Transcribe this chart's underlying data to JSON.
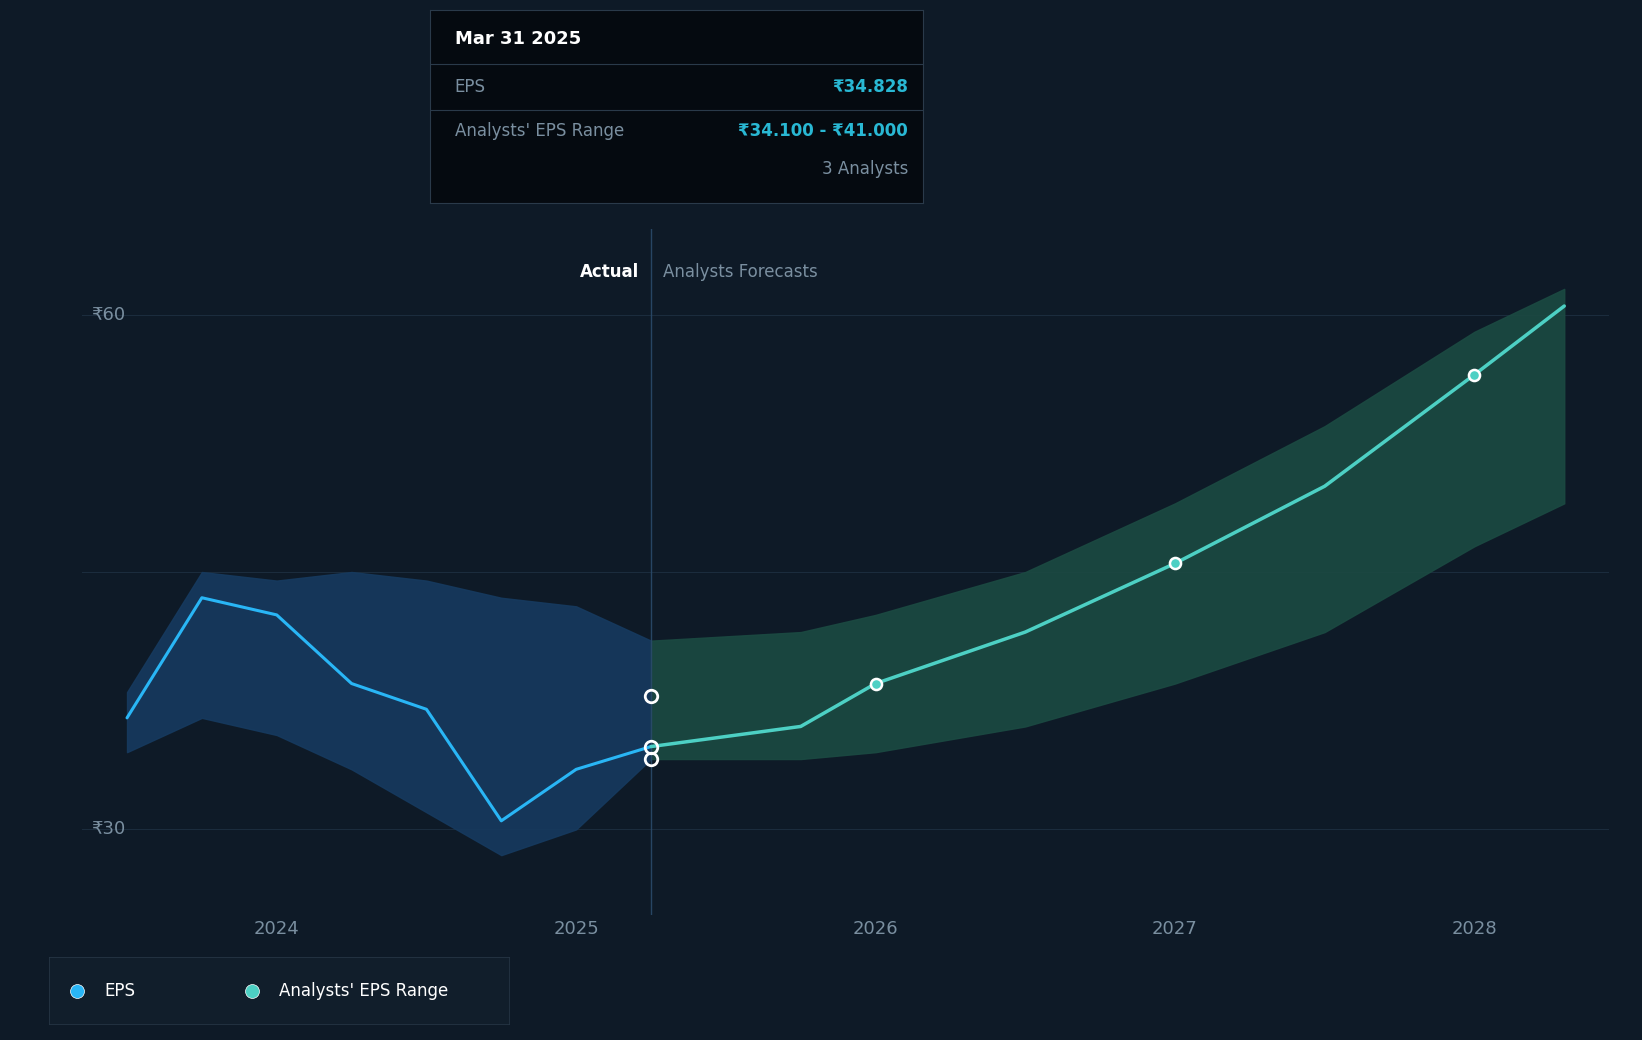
{
  "background_color": "#0e1a27",
  "plot_bg_color": "#0e1a27",
  "ylabel_60": "₹60",
  "ylabel_30": "₹30",
  "x_labels": [
    "2024",
    "2025",
    "2026",
    "2027",
    "2028"
  ],
  "actual_label": "Actual",
  "forecast_label": "Analysts Forecasts",
  "divider_x": 2025.25,
  "eps_actual_x": [
    2023.5,
    2023.75,
    2024.0,
    2024.25,
    2024.5,
    2024.75,
    2025.0,
    2025.25
  ],
  "eps_actual_y": [
    36.5,
    43.5,
    42.5,
    38.5,
    37.0,
    30.5,
    33.5,
    34.828
  ],
  "eps_range_actual_upper_x": [
    2023.5,
    2023.75,
    2024.0,
    2024.25,
    2024.5,
    2024.75,
    2025.0,
    2025.25
  ],
  "eps_range_actual_upper_y": [
    38.0,
    45.0,
    44.5,
    45.0,
    44.5,
    43.5,
    43.0,
    41.0
  ],
  "eps_range_actual_lower_x": [
    2023.5,
    2023.75,
    2024.0,
    2024.25,
    2024.5,
    2024.75,
    2025.0,
    2025.25
  ],
  "eps_range_actual_lower_y": [
    34.5,
    36.5,
    35.5,
    33.5,
    31.0,
    28.5,
    30.0,
    34.1
  ],
  "eps_forecast_x": [
    2025.25,
    2025.75,
    2026.0,
    2026.5,
    2027.0,
    2027.5,
    2028.0,
    2028.3
  ],
  "eps_forecast_y": [
    34.828,
    36.0,
    38.5,
    41.5,
    45.5,
    50.0,
    56.5,
    60.5
  ],
  "eps_forecast_upper_y": [
    41.0,
    41.5,
    42.5,
    45.0,
    49.0,
    53.5,
    59.0,
    61.5
  ],
  "eps_forecast_lower_y": [
    34.1,
    34.1,
    34.5,
    36.0,
    38.5,
    41.5,
    46.5,
    49.0
  ],
  "highlight_eps": 34.828,
  "highlight_upper": 41.0,
  "highlight_lower": 34.1,
  "eps_color": "#29b6f6",
  "forecast_color": "#4dd0c4",
  "forecast_fill_color": "#1b4a42",
  "actual_fill_color": "#163a5f",
  "ylim_min": 25,
  "ylim_max": 65,
  "xlim_min": 2023.35,
  "xlim_max": 2028.45,
  "tooltip_bg": "#050a10",
  "tooltip_border": "#2a3a4a",
  "tooltip_title": "Mar 31 2025",
  "tooltip_eps_label": "EPS",
  "tooltip_eps_value": "₹34.828",
  "tooltip_range_label": "Analysts' EPS Range",
  "tooltip_range_value": "₹34.100 - ₹41.000",
  "tooltip_analysts": "3 Analysts",
  "grid_color": "#1c2d3e",
  "divider_line_color": "#2a4a6a",
  "text_color": "#7a8fa0",
  "cyan_color": "#29b8d4",
  "legend_bg": "#111e2b"
}
